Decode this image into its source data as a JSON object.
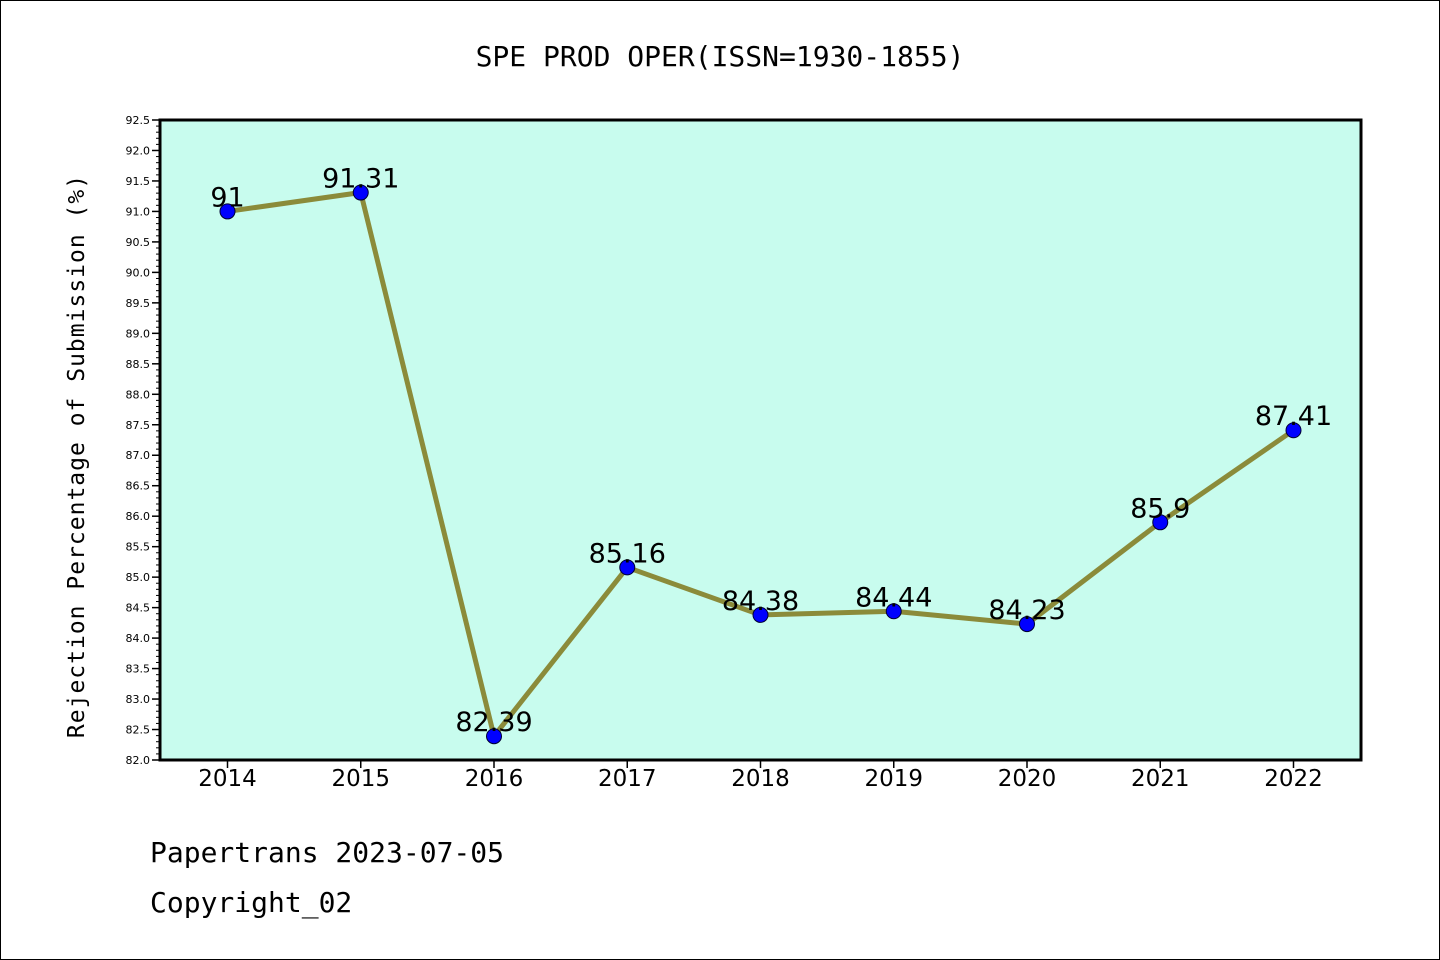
{
  "chart_data": {
    "type": "line",
    "title": "SPE PROD OPER(ISSN=1930-1855)",
    "xlabel": "",
    "ylabel": "Rejection Percentage of Submission (%)",
    "categories": [
      "2014",
      "2015",
      "2016",
      "2017",
      "2018",
      "2019",
      "2020",
      "2021",
      "2022"
    ],
    "values": [
      91,
      91.31,
      82.39,
      85.16,
      84.38,
      84.44,
      84.23,
      85.9,
      87.41
    ],
    "data_labels": [
      "91",
      "91.31",
      "82.39",
      "85.16",
      "84.38",
      "84.44",
      "84.23",
      "85.9",
      "87.41"
    ],
    "yticks": [
      "82.0",
      "82.5",
      "83.0",
      "83.5",
      "84.0",
      "84.5",
      "85.0",
      "85.5",
      "86.0",
      "86.5",
      "87.0",
      "87.5",
      "88.0",
      "88.5",
      "89.0",
      "89.5",
      "90.0",
      "90.5",
      "91.0",
      "91.5",
      "92.0",
      "92.5"
    ],
    "ylim": [
      82.0,
      92.5
    ],
    "grid": false,
    "colors": {
      "plot_background": "#c8fcee",
      "line": "#8b8b3a",
      "marker": "#0000ff"
    }
  },
  "footer": {
    "line1": "Papertrans 2023-07-05",
    "line2": "Copyright_02"
  }
}
